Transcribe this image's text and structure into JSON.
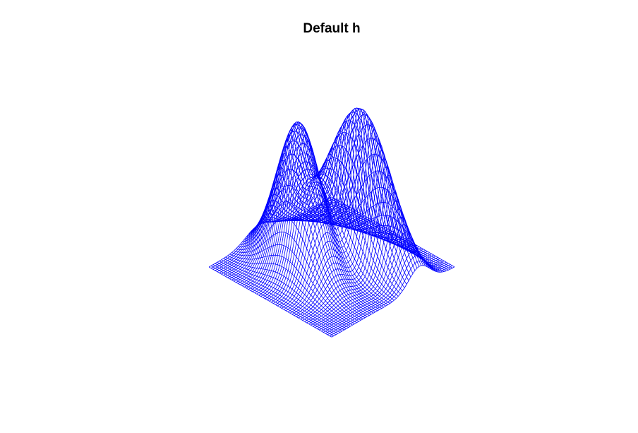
{
  "chart_data": {
    "type": "surface",
    "title": "Default h",
    "xlabel": "",
    "ylabel": "",
    "zlabel": "",
    "grid_resolution": 60,
    "surface": {
      "peaks": [
        {
          "name": "",
          "x": -0.9,
          "y": -0.5,
          "height": 1.0,
          "spread_x": 0.55,
          "spread_y": 1.25,
          "correlation": 0.35
        },
        {
          "name": "",
          "x": 0.9,
          "y": 0.7,
          "height": 0.95,
          "spread_x": 0.6,
          "spread_y": 1.05,
          "correlation": -0.2
        }
      ],
      "x_range": [
        -3,
        3
      ],
      "y_range": [
        -3,
        3
      ]
    },
    "colors": {
      "wireframe": "#0000ff",
      "background": "#ffffff"
    },
    "view": {
      "theta_deg": 135,
      "phi_deg": 25
    }
  }
}
